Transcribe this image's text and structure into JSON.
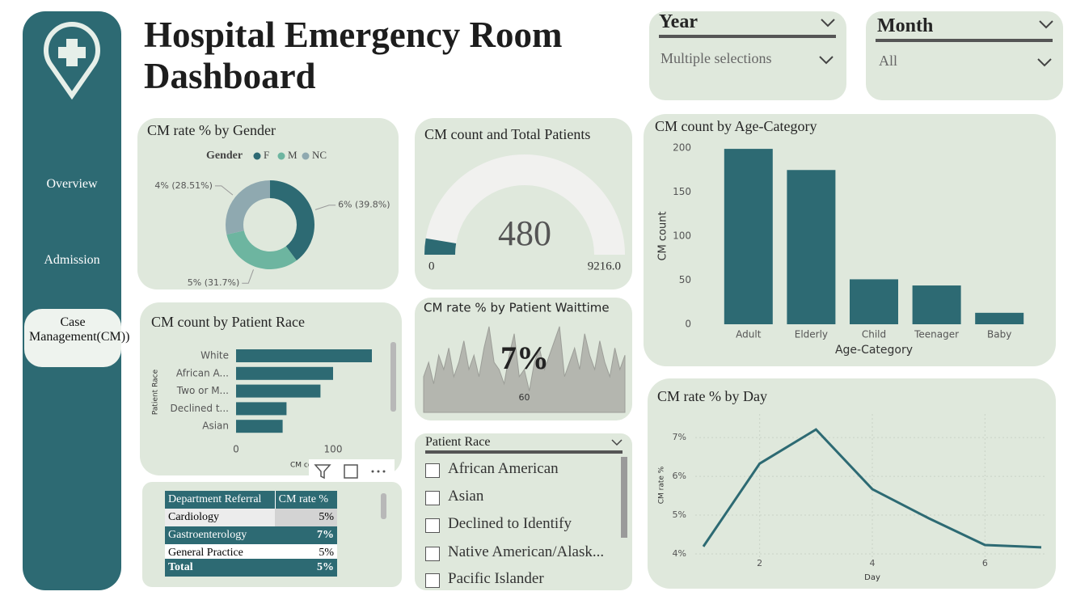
{
  "header": {
    "title": "Hospital Emergency Room Dashboard"
  },
  "nav": {
    "items": [
      "Overview",
      "Admission",
      "Case Management(CM))"
    ]
  },
  "slicers": [
    {
      "title": "Year",
      "value": "Multiple selections"
    },
    {
      "title": "Month",
      "value": "All"
    }
  ],
  "table": {
    "header": [
      "Department Referral",
      "CM rate %"
    ],
    "rows": [
      [
        "Cardiology",
        "5%"
      ],
      [
        "Gastroenterology",
        "7%"
      ],
      [
        "General Practice",
        "5%"
      ]
    ],
    "total": [
      "Total",
      "5%"
    ]
  },
  "race_slicer": {
    "title": "Patient Race",
    "items": [
      "African American",
      "Asian",
      "Declined to Identify",
      "Native American/Alask...",
      "Pacific Islander"
    ]
  },
  "chart_data": [
    {
      "type": "donut",
      "title": "CM rate % by Gender",
      "legend_title": "Gender",
      "categories": [
        "F",
        "M",
        "NC"
      ],
      "values": [
        39.8,
        31.7,
        28.51
      ],
      "value_labels": [
        "6% (39.8%)",
        "5% (31.7%)",
        "4% (28.51%)"
      ],
      "colors": [
        "#2d6a73",
        "#6db5a0",
        "#8fa9b0"
      ]
    },
    {
      "type": "gauge",
      "title": "CM count and Total Patients",
      "value": 480,
      "ylim": [
        0,
        9216
      ],
      "yticks": [
        0,
        {
          "value": 9216,
          "label": "9216.0"
        }
      ],
      "color": "#2d6a73",
      "track_color": "#f1f1ef"
    },
    {
      "type": "bar",
      "orientation": "horizontal",
      "title": "CM count by Patient Race",
      "categories": [
        "White",
        "African A...",
        "Two or M...",
        "Declined t...",
        "Asian"
      ],
      "values": [
        140,
        100,
        87,
        52,
        48
      ],
      "xlim": [
        0,
        150
      ],
      "xticks": [
        0,
        100
      ],
      "xlabel": "CM count",
      "ylabel": "Patient Race",
      "color": "#2d6a73"
    },
    {
      "type": "area",
      "title": "CM rate % by Patient Waittime",
      "annotation": "7%",
      "x": [
        0,
        3,
        6,
        9,
        12,
        15,
        18,
        21,
        24,
        27,
        30,
        33,
        36,
        39,
        42,
        45,
        48,
        51,
        54,
        57,
        60,
        63,
        66,
        69,
        72,
        75,
        78,
        81,
        84,
        87,
        90,
        93,
        96,
        99,
        102,
        105,
        108,
        111,
        114,
        117,
        120
      ],
      "values": [
        5,
        7,
        4,
        8,
        6,
        9,
        5,
        7,
        10,
        6,
        8,
        5,
        9,
        12,
        7,
        6,
        4,
        8,
        11,
        5,
        6,
        3,
        7,
        9,
        6,
        8,
        10,
        12,
        5,
        7,
        9,
        6,
        11,
        8,
        6,
        10,
        7,
        5,
        9,
        6,
        8
      ],
      "xlim": [
        0,
        120
      ],
      "ylim": [
        0,
        13
      ],
      "xticks": [
        60
      ],
      "color": "#b4b6af"
    },
    {
      "type": "bar",
      "orientation": "vertical",
      "title": "CM count by Age-Category",
      "categories": [
        "Adult",
        "Elderly",
        "Child",
        "Teenager",
        "Baby"
      ],
      "values": [
        199,
        175,
        51,
        44,
        13
      ],
      "ylim": [
        0,
        200
      ],
      "yticks": [
        0,
        50,
        100,
        150,
        200
      ],
      "xlabel": "Age-Category",
      "ylabel": "CM count",
      "color": "#2d6a73"
    },
    {
      "type": "line",
      "title": "CM rate % by Day",
      "x": [
        1,
        2,
        3,
        4,
        5,
        6,
        7
      ],
      "values": [
        4.19,
        6.33,
        7.21,
        5.67,
        4.92,
        4.23,
        4.17
      ],
      "xlim": [
        1,
        7
      ],
      "ylim": [
        4,
        7.4
      ],
      "xticks": [
        2,
        4,
        6
      ],
      "yticks": [
        {
          "value": 4,
          "label": "4%"
        },
        {
          "value": 5,
          "label": "5%"
        },
        {
          "value": 6,
          "label": "6%"
        },
        {
          "value": 7,
          "label": "7%"
        }
      ],
      "xlabel": "Day",
      "ylabel": "CM rate %",
      "color": "#2d6a73",
      "grid": true
    }
  ]
}
